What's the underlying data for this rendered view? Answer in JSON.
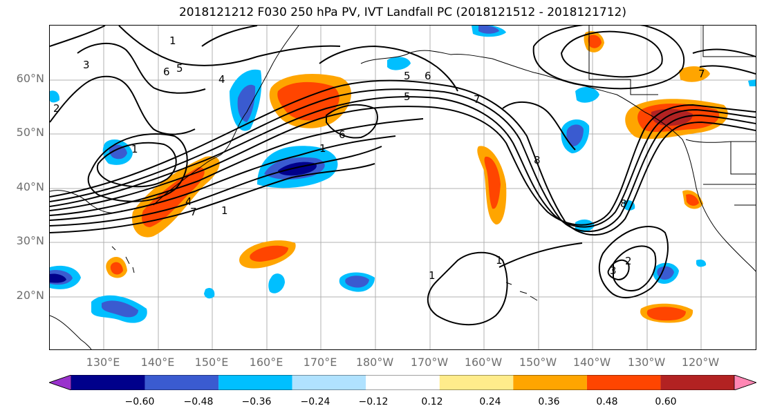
{
  "title": "2018121212 F030 250 hPa PV, IVT Landfall PC (2018121512 - 2018121712)",
  "lat_labels": [
    "60°N",
    "50°N",
    "40°N",
    "30°N",
    "20°N"
  ],
  "lon_labels": [
    "130°E",
    "140°E",
    "150°E",
    "160°E",
    "170°E",
    "180°W",
    "170°W",
    "160°W",
    "150°W",
    "140°W",
    "130°W",
    "120°W"
  ],
  "contour_labels": [
    "1",
    "2",
    "3",
    "4",
    "5",
    "6",
    "7",
    "8",
    "6",
    "5",
    "4",
    "7",
    "1",
    "1",
    "6",
    "5",
    "7",
    "1",
    "1",
    "1",
    "2",
    "3",
    "8"
  ],
  "colorbar": {
    "tick_labels": [
      "−0.60",
      "−0.48",
      "−0.36",
      "−0.24",
      "−0.12",
      "0.12",
      "0.24",
      "0.36",
      "0.48",
      "0.60"
    ],
    "colors": [
      "#9932cc",
      "#00008b",
      "#3a5bd0",
      "#00bfff",
      "#b0e2ff",
      "#ffffff",
      "#ffec8b",
      "#ffa500",
      "#ff4500",
      "#b22222",
      "#ff87b4"
    ]
  }
}
